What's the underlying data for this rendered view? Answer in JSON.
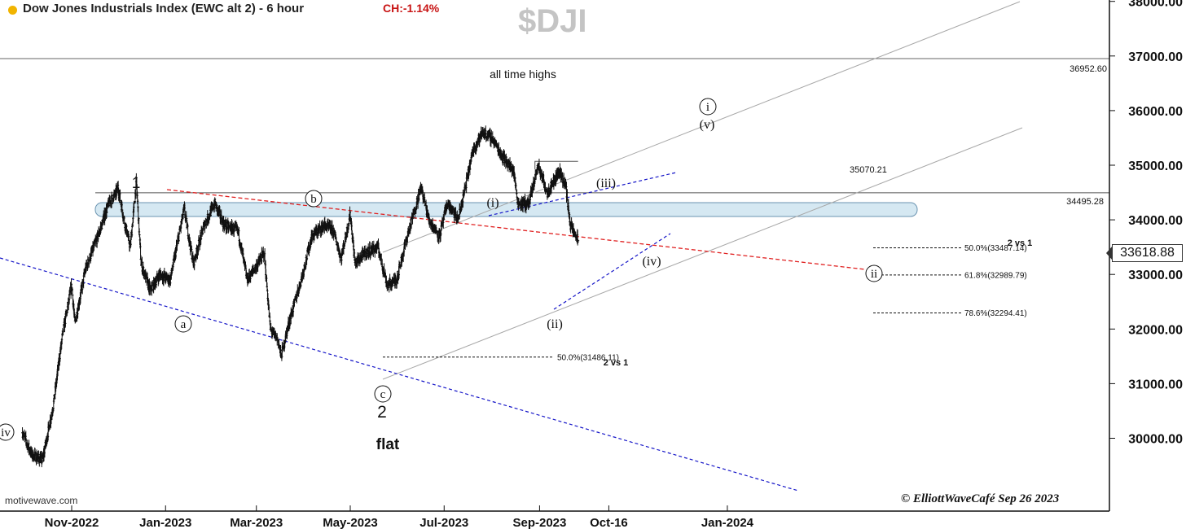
{
  "header": {
    "title": "Dow Jones Industrials Index (EWC alt 2) - 6 hour",
    "change": "CH:-1.14%",
    "symbol": "$DJI",
    "source": "motivewave.com",
    "copyright": "© ElliottWaveCafé Sep 26 2023",
    "last_price": "33618.88"
  },
  "colors": {
    "background": "#ffffff",
    "price_bars": "#111111",
    "channel": "#a8a8a8",
    "blue_trend": "#1515c8",
    "red_trend": "#e02020",
    "zone_fill": "#d5e8f2",
    "change_text": "#c81414"
  },
  "chart_data": {
    "type": "ohlc",
    "title": "Dow Jones Industrials Index (EWC alt 2) - 6 hour",
    "y_axis": {
      "position": "right",
      "min": 29600,
      "max": 38300,
      "ticks": [
        "30000.00",
        "31000.00",
        "32000.00",
        "33000.00",
        "34000.00",
        "35000.00",
        "36000.00",
        "37000.00",
        "38000.00"
      ]
    },
    "x_axis": {
      "ticks": [
        {
          "label": "Nov-2022",
          "date": "2022-11-01"
        },
        {
          "label": "Jan-2023",
          "date": "2023-01-01"
        },
        {
          "label": "Mar-2023",
          "date": "2023-03-01"
        },
        {
          "label": "May-2023",
          "date": "2023-05-01"
        },
        {
          "label": "Jul-2023",
          "date": "2023-07-01"
        },
        {
          "label": "Sep-2023",
          "date": "2023-09-01"
        },
        {
          "label": "Oct-16",
          "date": "2023-10-16"
        },
        {
          "label": "Jan-2024",
          "date": "2024-01-01"
        }
      ]
    },
    "price_path": [
      [
        "2022-09-30",
        30100
      ],
      [
        "2022-10-06",
        29700
      ],
      [
        "2022-10-13",
        29600
      ],
      [
        "2022-10-20",
        30600
      ],
      [
        "2022-10-26",
        31900
      ],
      [
        "2022-11-01",
        32800
      ],
      [
        "2022-11-03",
        32100
      ],
      [
        "2022-11-10",
        33100
      ],
      [
        "2022-11-18",
        33700
      ],
      [
        "2022-11-25",
        34300
      ],
      [
        "2022-11-30",
        34500
      ],
      [
        "2022-12-01",
        34600
      ],
      [
        "2022-12-05",
        34000
      ],
      [
        "2022-12-09",
        33500
      ],
      [
        "2022-12-13",
        34700
      ],
      [
        "2022-12-16",
        33200
      ],
      [
        "2022-12-22",
        32700
      ],
      [
        "2022-12-28",
        33000
      ],
      [
        "2023-01-04",
        32900
      ],
      [
        "2023-01-13",
        34200
      ],
      [
        "2023-01-19",
        33200
      ],
      [
        "2023-01-26",
        33900
      ],
      [
        "2023-02-02",
        34300
      ],
      [
        "2023-02-08",
        33900
      ],
      [
        "2023-02-17",
        33800
      ],
      [
        "2023-02-23",
        32900
      ],
      [
        "2023-03-02",
        33200
      ],
      [
        "2023-03-06",
        33400
      ],
      [
        "2023-03-10",
        32000
      ],
      [
        "2023-03-15",
        31800
      ],
      [
        "2023-03-17",
        31500
      ],
      [
        "2023-03-22",
        32100
      ],
      [
        "2023-03-30",
        32900
      ],
      [
        "2023-04-06",
        33700
      ],
      [
        "2023-04-14",
        33900
      ],
      [
        "2023-04-20",
        33800
      ],
      [
        "2023-04-25",
        33300
      ],
      [
        "2023-05-01",
        34100
      ],
      [
        "2023-05-04",
        33200
      ],
      [
        "2023-05-11",
        33400
      ],
      [
        "2023-05-19",
        33500
      ],
      [
        "2023-05-25",
        32800
      ],
      [
        "2023-05-31",
        32900
      ],
      [
        "2023-06-07",
        33700
      ],
      [
        "2023-06-13",
        34300
      ],
      [
        "2023-06-16",
        34600
      ],
      [
        "2023-06-21",
        34000
      ],
      [
        "2023-06-28",
        33700
      ],
      [
        "2023-07-03",
        34300
      ],
      [
        "2023-07-10",
        34000
      ],
      [
        "2023-07-14",
        34500
      ],
      [
        "2023-07-20",
        35300
      ],
      [
        "2023-07-26",
        35600
      ],
      [
        "2023-08-01",
        35500
      ],
      [
        "2023-08-07",
        35200
      ],
      [
        "2023-08-15",
        34900
      ],
      [
        "2023-08-18",
        34300
      ],
      [
        "2023-08-25",
        34300
      ],
      [
        "2023-08-31",
        35000
      ],
      [
        "2023-09-06",
        34500
      ],
      [
        "2023-09-14",
        34900
      ],
      [
        "2023-09-18",
        34600
      ],
      [
        "2023-09-21",
        33900
      ],
      [
        "2023-09-26",
        33618.88
      ]
    ],
    "horizontal_levels": [
      {
        "label": "36952.60",
        "value": 36952.6
      },
      {
        "label": "34495.28",
        "value": 34495.28
      },
      {
        "label": "35070.21",
        "value": 35070.21
      }
    ],
    "fib_levels": [
      {
        "label": "50.0%(31486.11)",
        "value": 31486.11
      },
      {
        "label": "50.0%(33487.14)",
        "value": 33487.14
      },
      {
        "label": "61.8%(32989.79)",
        "value": 32989.79
      },
      {
        "label": "78.6%(32294.41)",
        "value": 32294.41
      }
    ],
    "annotations": {
      "all_time_highs": "all time highs",
      "two_vs_one": "2 vs 1",
      "flat": "flat",
      "wave_1": "1",
      "wave_2": "2",
      "wave_iv_prev": "iv",
      "wave_a": "a",
      "wave_b": "b",
      "wave_c": "c",
      "wave_i_minor": "(i)",
      "wave_ii_minor": "(ii)",
      "wave_iii_minor": "(iii)",
      "wave_iv_minor": "(iv)",
      "wave_v_minor": "(v)",
      "wave_i_circled": "i",
      "wave_ii_circled": "ii"
    }
  }
}
